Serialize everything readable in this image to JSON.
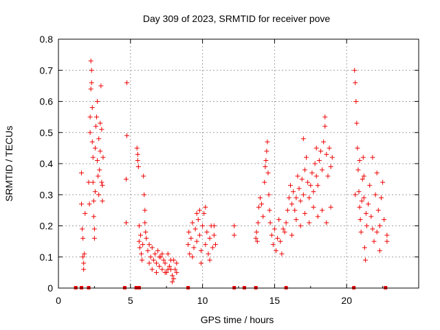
{
  "chart_data": {
    "type": "scatter",
    "title": "Day 309 of 2023, SRMTID for receiver pove",
    "xlabel": "GPS time / hours",
    "ylabel": "SRMTID / TECUs",
    "xlim": [
      0,
      25
    ],
    "ylim": [
      0,
      0.8
    ],
    "xticks": [
      0,
      5,
      10,
      15,
      20
    ],
    "yticks": [
      0,
      0.1,
      0.2,
      0.3,
      0.4,
      0.5,
      0.6,
      0.7,
      0.8
    ],
    "grid": true,
    "marker": "plus",
    "color": "#ee0000",
    "series": [
      {
        "name": "SRMTID",
        "points": [
          [
            1.6,
            0.37
          ],
          [
            1.6,
            0.27
          ],
          [
            1.65,
            0.19
          ],
          [
            1.7,
            0.16
          ],
          [
            1.7,
            0.1
          ],
          [
            1.75,
            0.08
          ],
          [
            1.75,
            0.06
          ],
          [
            1.8,
            0.11
          ],
          [
            1.85,
            0.24
          ],
          [
            2.1,
            0.34
          ],
          [
            2.15,
            0.27
          ],
          [
            2.2,
            0.5
          ],
          [
            2.2,
            0.55
          ],
          [
            2.25,
            0.64
          ],
          [
            2.25,
            0.73
          ],
          [
            2.3,
            0.7
          ],
          [
            2.3,
            0.66
          ],
          [
            2.35,
            0.58
          ],
          [
            2.35,
            0.47
          ],
          [
            2.4,
            0.42
          ],
          [
            2.4,
            0.34
          ],
          [
            2.45,
            0.28
          ],
          [
            2.45,
            0.23
          ],
          [
            2.5,
            0.19
          ],
          [
            2.5,
            0.16
          ],
          [
            2.55,
            0.31
          ],
          [
            2.55,
            0.45
          ],
          [
            2.6,
            0.52
          ],
          [
            2.65,
            0.55
          ],
          [
            2.7,
            0.6
          ],
          [
            2.7,
            0.41
          ],
          [
            2.75,
            0.36
          ],
          [
            2.8,
            0.3
          ],
          [
            2.8,
            0.48
          ],
          [
            2.85,
            0.38
          ],
          [
            2.9,
            0.44
          ],
          [
            2.9,
            0.53
          ],
          [
            2.95,
            0.65
          ],
          [
            3.0,
            0.51
          ],
          [
            3.0,
            0.34
          ],
          [
            3.05,
            0.28
          ],
          [
            3.05,
            0.33
          ],
          [
            3.1,
            0.42
          ],
          [
            4.75,
            0.66
          ],
          [
            4.75,
            0.49
          ],
          [
            4.7,
            0.35
          ],
          [
            4.7,
            0.21
          ],
          [
            5.45,
            0.45
          ],
          [
            5.5,
            0.43
          ],
          [
            5.5,
            0.41
          ],
          [
            5.55,
            0.39
          ],
          [
            5.6,
            0.2
          ],
          [
            5.6,
            0.15
          ],
          [
            5.65,
            0.13
          ],
          [
            5.7,
            0.17
          ],
          [
            5.75,
            0.11
          ],
          [
            5.8,
            0.09
          ],
          [
            5.85,
            0.14
          ],
          [
            5.9,
            0.36
          ],
          [
            5.95,
            0.3
          ],
          [
            6.0,
            0.25
          ],
          [
            6.0,
            0.21
          ],
          [
            6.05,
            0.18
          ],
          [
            6.1,
            0.16
          ],
          [
            6.2,
            0.12
          ],
          [
            6.3,
            0.14
          ],
          [
            6.4,
            0.1
          ],
          [
            6.5,
            0.13
          ],
          [
            6.6,
            0.09
          ],
          [
            6.7,
            0.11
          ],
          [
            6.8,
            0.08
          ],
          [
            6.9,
            0.12
          ],
          [
            7.0,
            0.07
          ],
          [
            7.1,
            0.1
          ],
          [
            7.2,
            0.06
          ],
          [
            7.3,
            0.09
          ],
          [
            7.4,
            0.08
          ],
          [
            7.5,
            0.05
          ],
          [
            7.6,
            0.11
          ],
          [
            7.7,
            0.07
          ],
          [
            7.8,
            0.06
          ],
          [
            7.9,
            0.04
          ],
          [
            8.0,
            0.09
          ],
          [
            8.1,
            0.06
          ],
          [
            8.2,
            0.08
          ],
          [
            6.3,
            0.08
          ],
          [
            6.5,
            0.06
          ],
          [
            6.8,
            0.05
          ],
          [
            7.0,
            0.1
          ],
          [
            7.2,
            0.11
          ],
          [
            7.4,
            0.05
          ],
          [
            7.6,
            0.06
          ],
          [
            7.8,
            0.09
          ],
          [
            8.0,
            0.03
          ],
          [
            8.2,
            0.05
          ],
          [
            7.9,
            0.02
          ],
          [
            9.0,
            0.14
          ],
          [
            9.05,
            0.18
          ],
          [
            9.1,
            0.11
          ],
          [
            9.2,
            0.16
          ],
          [
            9.3,
            0.21
          ],
          [
            9.4,
            0.13
          ],
          [
            9.5,
            0.19
          ],
          [
            9.6,
            0.15
          ],
          [
            9.7,
            0.22
          ],
          [
            9.8,
            0.17
          ],
          [
            9.9,
            0.12
          ],
          [
            10.0,
            0.2
          ],
          [
            10.1,
            0.24
          ],
          [
            10.2,
            0.14
          ],
          [
            10.3,
            0.18
          ],
          [
            10.4,
            0.11
          ],
          [
            10.5,
            0.16
          ],
          [
            10.6,
            0.2
          ],
          [
            10.7,
            0.13
          ],
          [
            10.8,
            0.17
          ],
          [
            10.9,
            0.14
          ],
          [
            9.3,
            0.1
          ],
          [
            9.6,
            0.24
          ],
          [
            9.9,
            0.08
          ],
          [
            10.2,
            0.26
          ],
          [
            10.5,
            0.09
          ],
          [
            10.8,
            0.2
          ],
          [
            9.8,
            0.25
          ],
          [
            12.2,
            0.2
          ],
          [
            12.2,
            0.17
          ],
          [
            13.7,
            0.16
          ],
          [
            13.75,
            0.18
          ],
          [
            13.8,
            0.15
          ],
          [
            13.85,
            0.21
          ],
          [
            13.9,
            0.26
          ],
          [
            14.0,
            0.29
          ],
          [
            14.1,
            0.27
          ],
          [
            14.2,
            0.23
          ],
          [
            14.3,
            0.34
          ],
          [
            14.35,
            0.39
          ],
          [
            14.4,
            0.41
          ],
          [
            14.45,
            0.44
          ],
          [
            14.5,
            0.47
          ],
          [
            14.55,
            0.37
          ],
          [
            14.6,
            0.3
          ],
          [
            14.65,
            0.25
          ],
          [
            14.7,
            0.21
          ],
          [
            14.8,
            0.17
          ],
          [
            14.9,
            0.14
          ],
          [
            15.0,
            0.19
          ],
          [
            15.1,
            0.12
          ],
          [
            15.2,
            0.16
          ],
          [
            15.3,
            0.22
          ],
          [
            15.4,
            0.15
          ],
          [
            15.5,
            0.11
          ],
          [
            15.6,
            0.19
          ],
          [
            15.7,
            0.18
          ],
          [
            15.8,
            0.21
          ],
          [
            15.9,
            0.25
          ],
          [
            16.0,
            0.29
          ],
          [
            16.1,
            0.33
          ],
          [
            16.2,
            0.27
          ],
          [
            16.3,
            0.31
          ],
          [
            16.4,
            0.25
          ],
          [
            16.5,
            0.29
          ],
          [
            16.6,
            0.36
          ],
          [
            16.7,
            0.32
          ],
          [
            16.8,
            0.28
          ],
          [
            16.9,
            0.35
          ],
          [
            17.0,
            0.3
          ],
          [
            17.1,
            0.38
          ],
          [
            17.2,
            0.42
          ],
          [
            17.3,
            0.34
          ],
          [
            17.4,
            0.29
          ],
          [
            17.5,
            0.33
          ],
          [
            17.6,
            0.37
          ],
          [
            17.7,
            0.31
          ],
          [
            17.8,
            0.4
          ],
          [
            17.9,
            0.36
          ],
          [
            18.0,
            0.33
          ],
          [
            18.1,
            0.41
          ],
          [
            18.2,
            0.44
          ],
          [
            18.3,
            0.38
          ],
          [
            18.4,
            0.47
          ],
          [
            18.5,
            0.52
          ],
          [
            18.6,
            0.43
          ],
          [
            18.7,
            0.36
          ],
          [
            18.8,
            0.45
          ],
          [
            18.9,
            0.39
          ],
          [
            19.0,
            0.42
          ],
          [
            16.2,
            0.17
          ],
          [
            16.5,
            0.22
          ],
          [
            16.8,
            0.2
          ],
          [
            17.1,
            0.24
          ],
          [
            17.4,
            0.21
          ],
          [
            17.7,
            0.26
          ],
          [
            18.0,
            0.23
          ],
          [
            18.3,
            0.25
          ],
          [
            18.6,
            0.21
          ],
          [
            18.9,
            0.26
          ],
          [
            17.0,
            0.48
          ],
          [
            17.9,
            0.45
          ],
          [
            18.5,
            0.55
          ],
          [
            20.55,
            0.7
          ],
          [
            20.6,
            0.66
          ],
          [
            20.65,
            0.6
          ],
          [
            20.7,
            0.53
          ],
          [
            20.75,
            0.45
          ],
          [
            20.8,
            0.38
          ],
          [
            20.85,
            0.31
          ],
          [
            20.9,
            0.26
          ],
          [
            20.95,
            0.22
          ],
          [
            21.0,
            0.18
          ],
          [
            21.05,
            0.28
          ],
          [
            21.1,
            0.35
          ],
          [
            21.15,
            0.42
          ],
          [
            21.2,
            0.29
          ],
          [
            21.25,
            0.13
          ],
          [
            21.3,
            0.09
          ],
          [
            21.35,
            0.24
          ],
          [
            21.4,
            0.2
          ],
          [
            21.5,
            0.27
          ],
          [
            21.6,
            0.33
          ],
          [
            21.7,
            0.23
          ],
          [
            21.8,
            0.19
          ],
          [
            21.9,
            0.15
          ],
          [
            22.0,
            0.3
          ],
          [
            22.1,
            0.37
          ],
          [
            22.2,
            0.25
          ],
          [
            22.3,
            0.2
          ],
          [
            22.4,
            0.29
          ],
          [
            22.5,
            0.34
          ],
          [
            22.6,
            0.22
          ],
          [
            20.6,
            0.3
          ],
          [
            20.9,
            0.41
          ],
          [
            21.2,
            0.36
          ],
          [
            21.8,
            0.42
          ],
          [
            22.1,
            0.18
          ],
          [
            22.3,
            0.12
          ],
          [
            22.8,
            0.17
          ],
          [
            22.8,
            0.15
          ]
        ]
      }
    ],
    "zero_markers": [
      1.2,
      1.6,
      2.1,
      4.6,
      5.4,
      5.5,
      5.6,
      9.0,
      12.2,
      12.9,
      13.7,
      15.8,
      20.5,
      22.7
    ]
  }
}
